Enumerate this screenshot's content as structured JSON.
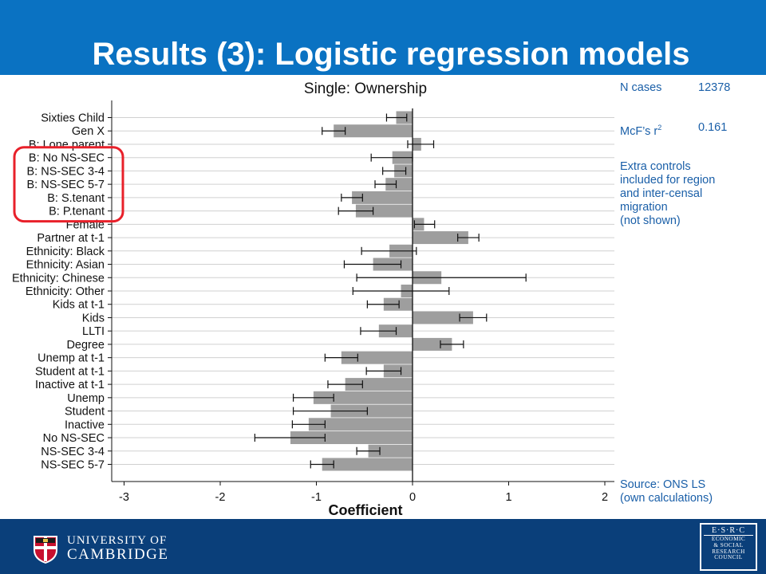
{
  "slide": {
    "title": "Results (3): Logistic regression models"
  },
  "stats": {
    "n_label": "N cases",
    "n_value": "12378",
    "r2_label": "McF’s r",
    "r2_sup": "2",
    "r2_value": "0.161",
    "note_lines": [
      "Extra controls",
      "included for region",
      "and inter-censal",
      "migration",
      "(not shown)"
    ],
    "source_lines": [
      "Source: ONS LS",
      "(own calculations)"
    ]
  },
  "chart_data": {
    "type": "bar",
    "orientation": "horizontal",
    "title": "Single: Ownership",
    "xlabel": "Coefficient",
    "ylabel": "",
    "xlim": [
      -3,
      2
    ],
    "xticks": [
      "-3",
      "-2",
      "-1",
      "0",
      "1",
      "2"
    ],
    "grid": true,
    "bar_color": "#9e9e9e",
    "highlight_color": "#e8202a",
    "categories": [
      "Sixties Child",
      "Gen X",
      "B: Lone parent",
      "B: No NS-SEC",
      "B: NS-SEC 3-4",
      "B: NS-SEC 5-7",
      "B: S.tenant",
      "B: P.tenant",
      "Female",
      "Partner at t-1",
      "Ethnicity: Black",
      "Ethnicity: Asian",
      "Ethnicity: Chinese",
      "Ethnicity: Other",
      "Kids at t-1",
      "Kids",
      "LLTI",
      "Degree",
      "Unemp at t-1",
      "Student at t-1",
      "Inactive at t-1",
      "Unemp",
      "Student",
      "Inactive",
      "No NS-SEC",
      "NS-SEC 3-4",
      "NS-SEC 5-7"
    ],
    "values": [
      -0.17,
      -0.82,
      0.09,
      -0.21,
      -0.19,
      -0.28,
      -0.63,
      -0.59,
      0.12,
      0.58,
      -0.24,
      -0.41,
      0.3,
      -0.12,
      -0.3,
      0.63,
      -0.35,
      0.41,
      -0.74,
      -0.3,
      -0.7,
      -1.03,
      -0.85,
      -1.08,
      -1.27,
      -0.46,
      -0.94
    ],
    "ci_low": [
      -0.27,
      -0.94,
      -0.05,
      -0.43,
      -0.31,
      -0.39,
      -0.74,
      -0.77,
      0.02,
      0.47,
      -0.53,
      -0.71,
      -0.58,
      -0.62,
      -0.47,
      0.49,
      -0.54,
      0.29,
      -0.91,
      -0.48,
      -0.88,
      -1.24,
      -1.24,
      -1.25,
      -1.64,
      -0.58,
      -1.06
    ],
    "ci_high": [
      -0.06,
      -0.7,
      0.22,
      0.0,
      -0.07,
      -0.17,
      -0.52,
      -0.41,
      0.23,
      0.69,
      0.04,
      -0.12,
      1.18,
      0.38,
      -0.14,
      0.77,
      -0.17,
      0.53,
      -0.57,
      -0.12,
      -0.52,
      -0.82,
      -0.47,
      -0.91,
      -0.91,
      -0.34,
      -0.82
    ],
    "highlighted": [
      "B: No NS-SEC",
      "B: NS-SEC 3-4",
      "B: NS-SEC 5-7",
      "B: S.tenant",
      "B: P.tenant"
    ]
  },
  "footer": {
    "university_line1": "UNIVERSITY OF",
    "university_line2": "CAMBRIDGE",
    "esrc_line1": "E·S·R·C",
    "esrc_lines": [
      "ECONOMIC",
      "& SOCIAL",
      "RESEARCH",
      "COUNCIL"
    ]
  },
  "colors": {
    "top_bar": "#0a72c2",
    "footer": "#0a3f7a",
    "stat_text": "#1a5fa8"
  }
}
